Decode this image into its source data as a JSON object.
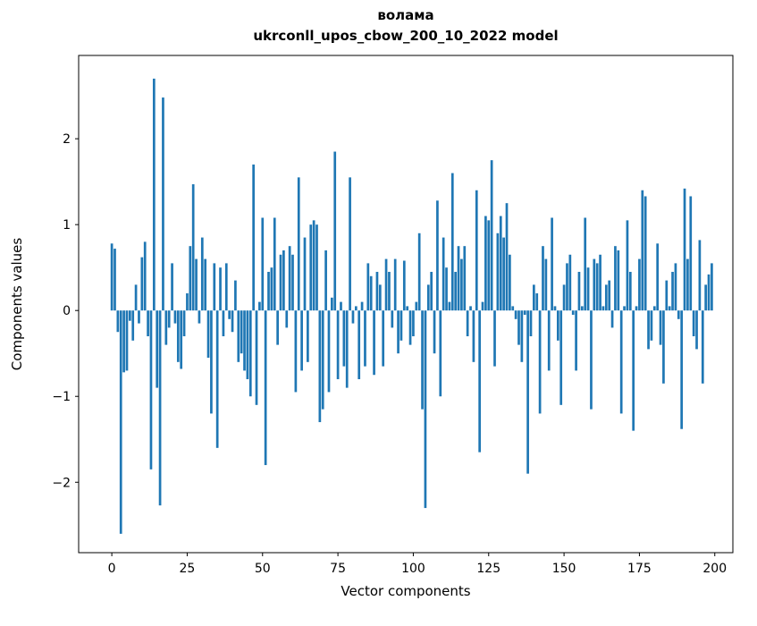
{
  "chart_data": {
    "type": "bar",
    "title": "волама",
    "subtitle": "ukrconll_upos_cbow_200_10_2022 model",
    "xlabel": "Vector components",
    "ylabel": "Components values",
    "legend": "none",
    "grid": false,
    "bar_color": "#1f77b4",
    "xlim": [
      -11,
      206
    ],
    "ylim": [
      -2.82,
      2.97
    ],
    "xticks": [
      0,
      25,
      50,
      75,
      100,
      125,
      150,
      175,
      200
    ],
    "yticks": [
      -2,
      -1,
      0,
      1,
      2
    ],
    "x_start": 0,
    "values": [
      0.78,
      0.72,
      -0.25,
      -2.6,
      -0.72,
      -0.7,
      -0.12,
      -0.35,
      0.3,
      -0.15,
      0.62,
      0.8,
      -0.3,
      -1.85,
      2.7,
      -0.9,
      -2.27,
      2.48,
      -0.4,
      -0.2,
      0.55,
      -0.15,
      -0.6,
      -0.68,
      -0.3,
      0.2,
      0.75,
      1.47,
      0.6,
      -0.15,
      0.85,
      0.6,
      -0.55,
      -1.2,
      0.55,
      -1.6,
      0.5,
      -0.3,
      0.55,
      -0.1,
      -0.25,
      0.35,
      -0.6,
      -0.5,
      -0.7,
      -0.8,
      -1.0,
      1.7,
      -1.1,
      0.1,
      1.08,
      -1.8,
      0.45,
      0.5,
      1.08,
      -0.4,
      0.65,
      0.7,
      -0.2,
      0.75,
      0.65,
      -0.95,
      1.55,
      -0.7,
      0.85,
      -0.6,
      1.0,
      1.05,
      1.0,
      -1.3,
      -1.15,
      0.7,
      -0.95,
      0.15,
      1.85,
      -0.8,
      0.1,
      -0.65,
      -0.9,
      1.55,
      -0.15,
      0.05,
      -0.8,
      0.1,
      -0.65,
      0.55,
      0.4,
      -0.75,
      0.45,
      0.3,
      -0.65,
      0.6,
      0.45,
      -0.2,
      0.6,
      -0.5,
      -0.35,
      0.58,
      0.05,
      -0.4,
      -0.3,
      0.1,
      0.9,
      -1.15,
      -2.3,
      0.3,
      0.45,
      -0.5,
      1.28,
      -1.0,
      0.85,
      0.5,
      0.1,
      1.6,
      0.45,
      0.75,
      0.6,
      0.75,
      -0.3,
      0.05,
      -0.6,
      1.4,
      -1.65,
      0.1,
      1.1,
      1.05,
      1.75,
      -0.65,
      0.9,
      1.1,
      0.85,
      1.25,
      0.65,
      0.05,
      -0.1,
      -0.4,
      -0.6,
      -0.05,
      -1.9,
      -0.3,
      0.3,
      0.2,
      -1.2,
      0.75,
      0.6,
      -0.7,
      1.08,
      0.05,
      -0.35,
      -1.1,
      0.3,
      0.55,
      0.65,
      -0.05,
      -0.7,
      0.45,
      0.05,
      1.08,
      0.5,
      -1.15,
      0.6,
      0.55,
      0.65,
      0.05,
      0.3,
      0.35,
      -0.2,
      0.75,
      0.7,
      -1.2,
      0.05,
      1.05,
      0.45,
      -1.4,
      0.05,
      0.6,
      1.4,
      1.33,
      -0.45,
      -0.35,
      0.05,
      0.78,
      -0.4,
      -0.85,
      0.35,
      0.05,
      0.45,
      0.55,
      -0.1,
      -1.38,
      1.42,
      0.6,
      1.33,
      -0.3,
      -0.45,
      0.82,
      -0.85,
      0.3,
      0.42,
      0.55
    ]
  }
}
